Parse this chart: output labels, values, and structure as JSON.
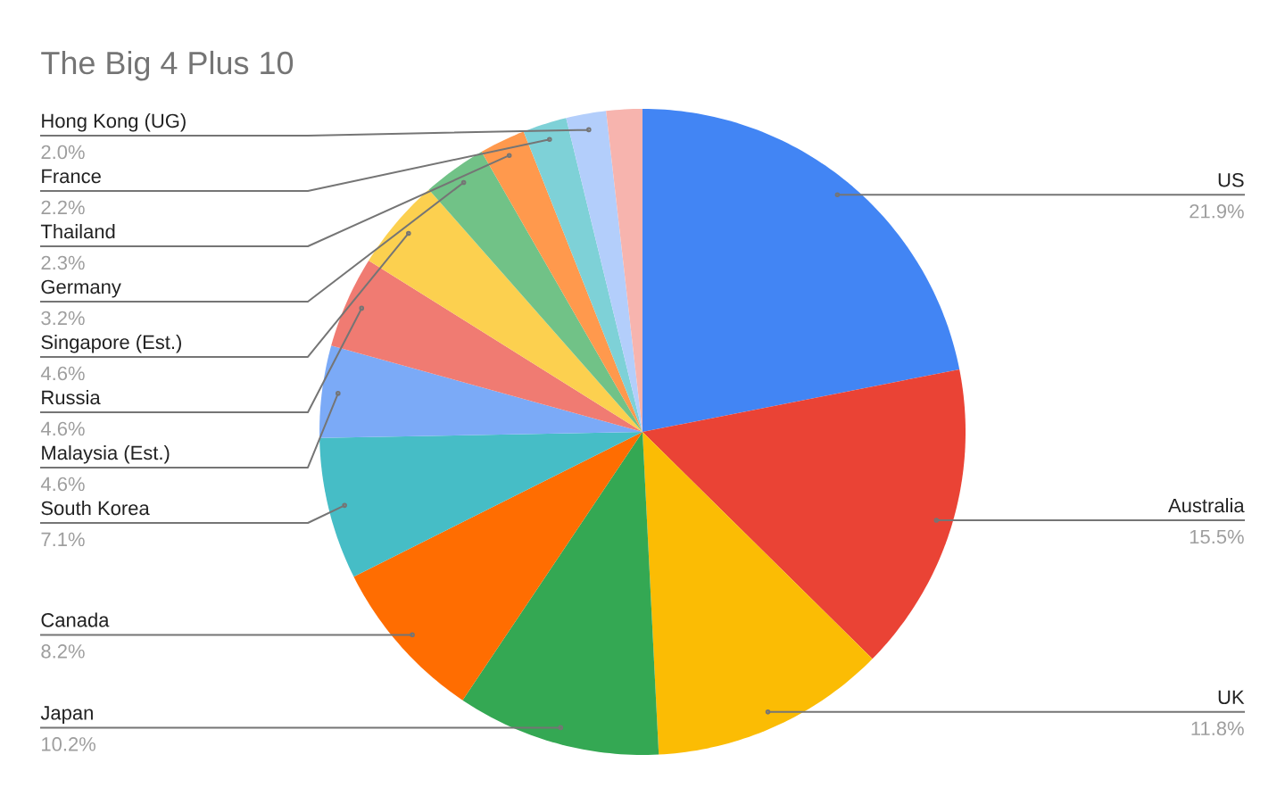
{
  "chart_data": {
    "type": "pie",
    "title": "The Big 4 Plus 10",
    "categories": [
      "US",
      "Australia",
      "UK",
      "Japan",
      "Canada",
      "South Korea",
      "Malaysia (Est.)",
      "Russia",
      "Singapore (Est.)",
      "Germany",
      "Thailand",
      "France",
      "Hong Kong (UG)",
      null
    ],
    "values": [
      21.9,
      15.5,
      11.8,
      10.2,
      8.2,
      7.1,
      4.6,
      4.6,
      4.6,
      3.2,
      2.3,
      2.2,
      2.0,
      1.8
    ],
    "value_labels": [
      "21.9%",
      "15.5%",
      "11.8%",
      "10.2%",
      "8.2%",
      "7.1%",
      "4.6%",
      "4.6%",
      "4.6%",
      "3.2%",
      "2.3%",
      "2.2%",
      "2.0%",
      null
    ],
    "colors": [
      "#4285f4",
      "#ea4335",
      "#fbbc04",
      "#34a853",
      "#ff6d01",
      "#46bdc6",
      "#7baaf7",
      "#f07b72",
      "#fcd04f",
      "#71c287",
      "#ff994d",
      "#7ed1d7",
      "#b3cefb",
      "#f7b4ae"
    ]
  }
}
